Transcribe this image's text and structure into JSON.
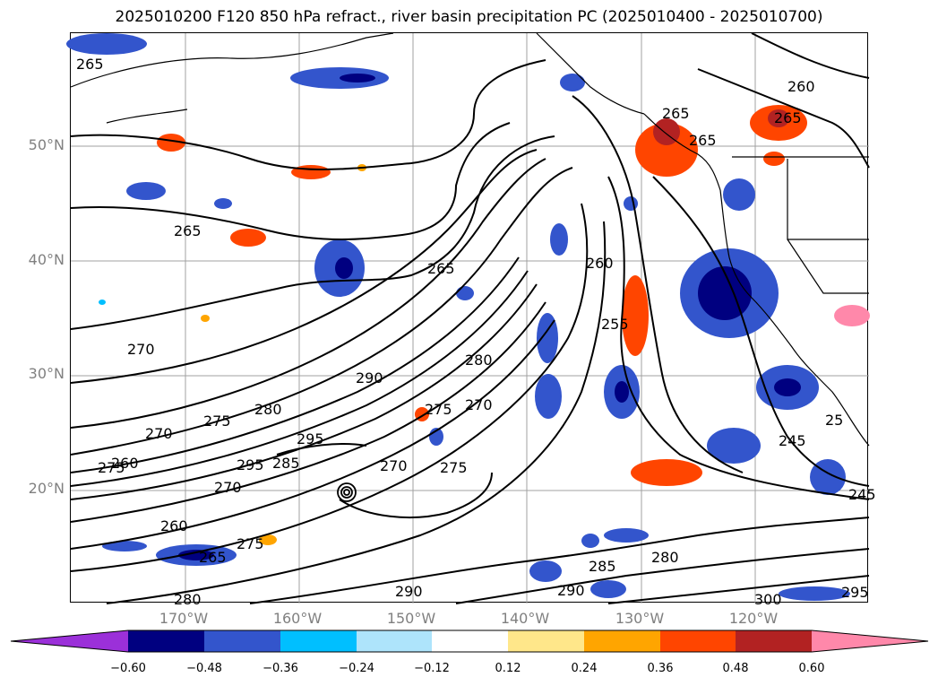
{
  "title": "2025010200 F120 850 hPa refract., river basin precipitation PC (2025010400 - 2025010700)",
  "map": {
    "lat_labels": [
      "50°N",
      "40°N",
      "30°N",
      "20°N"
    ],
    "lon_labels": [
      "170°W",
      "160°W",
      "150°W",
      "140°W",
      "130°W",
      "120°W"
    ],
    "contour_labels": [
      "265",
      "260",
      "265",
      "265",
      "265",
      "265",
      "260",
      "265",
      "255",
      "270",
      "290",
      "280",
      "280",
      "275",
      "270",
      "275",
      "270",
      "295",
      "275",
      "260",
      "295",
      "285",
      "270",
      "275",
      "270",
      "260",
      "245",
      "245",
      "275",
      "265",
      "285",
      "280",
      "280",
      "290",
      "290",
      "300",
      "295",
      "25"
    ]
  },
  "colorbar": {
    "ticks": [
      "−0.60",
      "−0.48",
      "−0.36",
      "−0.24",
      "−0.12",
      "0.12",
      "0.24",
      "0.36",
      "0.48",
      "0.60"
    ],
    "colors": [
      "#9b30d9",
      "#000080",
      "#3355cc",
      "#00bfff",
      "#aee4fb",
      "#ffffff",
      "#ffe78a",
      "#ffa500",
      "#ff4500",
      "#b22222",
      "#ff88aa"
    ]
  }
}
